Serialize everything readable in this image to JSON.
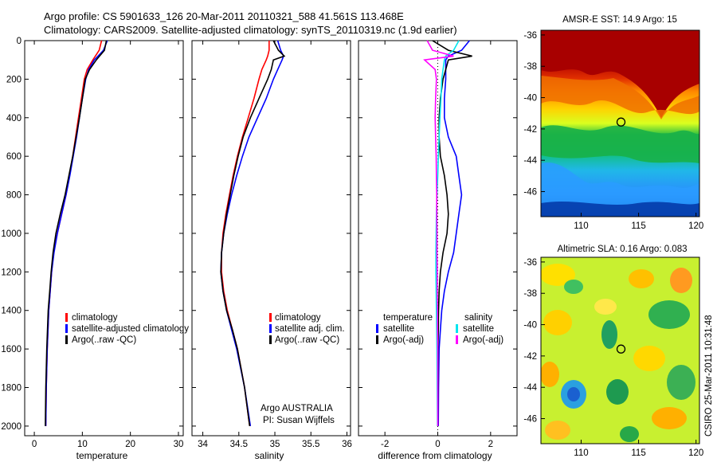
{
  "header": {
    "line1": "Argo profile: CS 5901633_126 20-Mar-2011 20110321_588 41.561S 113.468E",
    "line2": "Climatology: CARS2009. Satellite-adjusted climatology: synTS_20110319.nc (1.9d earlier)"
  },
  "footer": {
    "credit": "CSIRO 25-Mar-2011 10:31:48"
  },
  "colors": {
    "red": "#ff0000",
    "blue": "#0000ff",
    "black": "#000000",
    "cyan": "#00e5ee",
    "magenta": "#ff00ff"
  },
  "chart_data": [
    {
      "type": "line",
      "name": "temperature-profile",
      "xlabel": "temperature",
      "ylabel": "",
      "xlim": [
        -2,
        31
      ],
      "ylim": [
        2050,
        0
      ],
      "xticks": [
        0,
        10,
        20,
        30
      ],
      "yticks": [
        0,
        200,
        400,
        600,
        800,
        1000,
        1200,
        1400,
        1600,
        1800,
        2000
      ],
      "legend": [
        "climatology",
        "satellite-adjusted climatology",
        "Argo(..raw -QC)"
      ],
      "depth": [
        0,
        50,
        100,
        150,
        200,
        300,
        400,
        500,
        600,
        700,
        800,
        900,
        1000,
        1100,
        1200,
        1300,
        1400,
        1600,
        1800,
        2000
      ],
      "series": [
        {
          "name": "climatology",
          "color": "red",
          "values": [
            14.0,
            13.5,
            12.2,
            11.0,
            10.4,
            9.8,
            9.2,
            8.6,
            8.0,
            7.3,
            6.6,
            5.7,
            4.8,
            4.0,
            3.6,
            3.3,
            3.0,
            2.7,
            2.5,
            2.4
          ]
        },
        {
          "name": "satellite-adjusted climatology",
          "color": "blue",
          "values": [
            15.2,
            14.4,
            12.5,
            11.3,
            10.7,
            10.0,
            9.4,
            8.8,
            8.1,
            7.4,
            6.6,
            5.7,
            4.8,
            4.1,
            3.6,
            3.3,
            3.0,
            2.7,
            2.5,
            2.4
          ]
        },
        {
          "name": "Argo(..raw -QC)",
          "color": "black",
          "values": [
            15.0,
            14.6,
            12.9,
            11.5,
            10.6,
            10.0,
            9.4,
            8.7,
            8.0,
            7.2,
            6.4,
            5.4,
            4.5,
            3.9,
            3.5,
            3.2,
            2.9,
            2.6,
            2.4,
            2.3
          ]
        }
      ]
    },
    {
      "type": "line",
      "name": "salinity-profile",
      "xlabel": "salinity",
      "xlim": [
        33.85,
        36.05
      ],
      "ylim": [
        2050,
        0
      ],
      "xticks": [
        34,
        34.5,
        35,
        35.5,
        36
      ],
      "legend": [
        "climatology",
        "satellite adj. clim.",
        "Argo(..raw -QC)"
      ],
      "annotations": [
        "Argo AUSTRALIA",
        "PI: Susan Wijffels"
      ],
      "depth": [
        0,
        50,
        80,
        100,
        150,
        200,
        300,
        400,
        500,
        600,
        700,
        800,
        900,
        1000,
        1100,
        1200,
        1300,
        1400,
        1500,
        1600,
        1800,
        2000
      ],
      "series": [
        {
          "name": "climatology",
          "color": "red",
          "values": [
            34.92,
            34.92,
            34.9,
            34.88,
            34.82,
            34.78,
            34.71,
            34.63,
            34.55,
            34.48,
            34.42,
            34.37,
            34.32,
            34.28,
            34.26,
            34.26,
            34.29,
            34.34,
            34.41,
            34.48,
            34.58,
            34.65
          ]
        },
        {
          "name": "satellite adj. clim.",
          "color": "blue",
          "values": [
            35.04,
            35.08,
            35.12,
            35.1,
            35.04,
            34.98,
            34.88,
            34.76,
            34.64,
            34.55,
            34.47,
            34.4,
            34.34,
            34.29,
            34.26,
            34.25,
            34.28,
            34.33,
            34.4,
            34.47,
            34.58,
            34.66
          ]
        },
        {
          "name": "Argo(..raw -QC)",
          "color": "black",
          "values": [
            34.98,
            35.05,
            35.13,
            34.98,
            34.95,
            34.9,
            34.78,
            34.66,
            34.56,
            34.49,
            34.43,
            34.38,
            34.33,
            34.29,
            34.26,
            34.25,
            34.28,
            34.33,
            34.41,
            34.48,
            34.58,
            34.65
          ]
        }
      ]
    },
    {
      "type": "line",
      "name": "difference-profile",
      "xlabel": "difference from climatology",
      "xlim": [
        -3,
        3
      ],
      "ylim": [
        2050,
        0
      ],
      "xticks": [
        -2,
        0,
        2
      ],
      "legend_temperature_title": "temperature",
      "legend_salinity_title": "salinity",
      "legend": [
        "satellite",
        "Argo(-adj)",
        "satellite",
        "Argo(-adj)"
      ],
      "depth": [
        0,
        50,
        80,
        100,
        150,
        200,
        300,
        400,
        500,
        600,
        700,
        800,
        900,
        1000,
        1100,
        1200,
        1300,
        1400,
        1500,
        1600,
        1800,
        2000
      ],
      "series": [
        {
          "name": "temperature satellite",
          "color": "blue",
          "values": [
            1.2,
            0.9,
            0.4,
            0.3,
            0.3,
            0.3,
            0.25,
            0.25,
            0.4,
            0.7,
            0.8,
            0.9,
            0.8,
            0.7,
            0.6,
            0.4,
            0.25,
            0.15,
            0.1,
            0.05,
            0.03,
            0.02
          ]
        },
        {
          "name": "temperature Argo(-adj)",
          "color": "black",
          "values": [
            -0.2,
            0.4,
            1.3,
            0.4,
            0.3,
            0.2,
            0.1,
            0.05,
            0.05,
            0.1,
            0.25,
            0.35,
            0.4,
            0.35,
            0.2,
            0.1,
            0.05,
            0.03,
            0.02,
            0.01,
            0.01,
            0.0
          ]
        },
        {
          "name": "salinity satellite",
          "color": "cyan",
          "values": [
            0.8,
            0.6,
            0.3,
            0.25,
            0.2,
            0.15,
            0.12,
            0.08,
            0.05,
            0.02,
            0.0,
            -0.03,
            -0.05,
            -0.06,
            -0.07,
            -0.07,
            -0.06,
            -0.05,
            -0.04,
            -0.03,
            -0.02,
            -0.01
          ]
        },
        {
          "name": "salinity Argo(-adj)",
          "color": "magenta",
          "values": [
            -0.4,
            -0.2,
            0.6,
            -0.5,
            -0.1,
            -0.05,
            -0.08,
            -0.1,
            -0.08,
            -0.06,
            -0.05,
            -0.04,
            -0.04,
            -0.03,
            -0.03,
            -0.02,
            -0.02,
            -0.01,
            -0.01,
            0.0,
            0.0,
            0.0
          ]
        }
      ]
    },
    {
      "type": "heatmap",
      "name": "sst-map",
      "title": "AMSR-E SST: 14.9 Argo: 15",
      "xlim": [
        106.5,
        120.3
      ],
      "ylim": [
        -47.6,
        -35.7
      ],
      "xticks": [
        110,
        115,
        120
      ],
      "yticks": [
        -36,
        -38,
        -40,
        -42,
        -44,
        -46
      ],
      "marker": {
        "lon": 113.468,
        "lat": -41.561
      }
    },
    {
      "type": "heatmap",
      "name": "sla-map",
      "title": "Altimetric SLA: 0.16 Argo: 0.083",
      "xlim": [
        106.5,
        120.3
      ],
      "ylim": [
        -47.6,
        -35.7
      ],
      "xticks": [
        110,
        115,
        120
      ],
      "yticks": [
        -36,
        -38,
        -40,
        -42,
        -44,
        -46
      ],
      "marker": {
        "lon": 113.468,
        "lat": -41.561
      }
    }
  ]
}
